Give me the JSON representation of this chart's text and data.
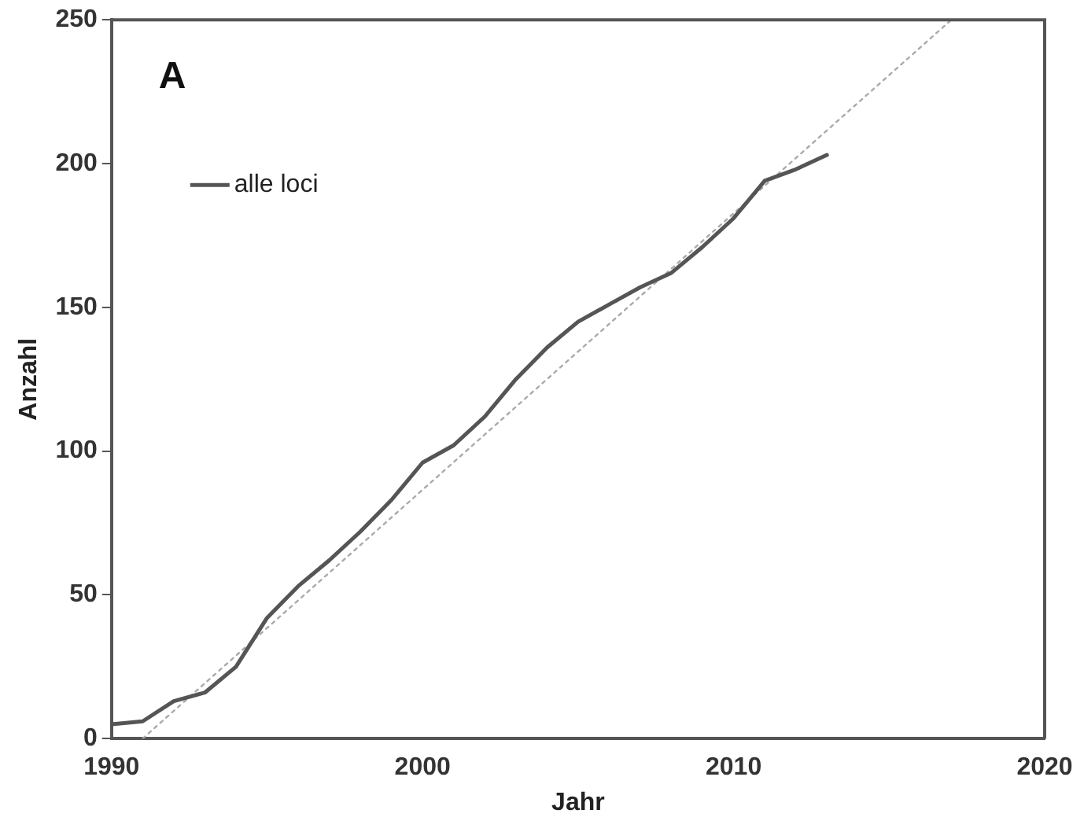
{
  "chart_data": {
    "type": "line",
    "xlabel": "Jahr",
    "ylabel": "Anzahl",
    "annotations": [
      "A"
    ],
    "xlim": [
      1990,
      2020
    ],
    "xticks": [
      1990,
      2000,
      2010,
      2020
    ],
    "ylim": [
      0,
      250
    ],
    "yticks": [
      0,
      50,
      100,
      150,
      200,
      250
    ],
    "grid": false,
    "legend": "top left",
    "marker": "none",
    "series": [
      {
        "name": "alle loci",
        "color": "#555555",
        "line_style": "solid",
        "x": [
          1990,
          1991,
          1992,
          1993,
          1994,
          1995,
          1996,
          1997,
          1998,
          1999,
          2000,
          2001,
          2002,
          2003,
          2004,
          2005,
          2006,
          2007,
          2008,
          2009,
          2010,
          2011,
          2012,
          2013
        ],
        "values": [
          5,
          6,
          13,
          16,
          25,
          42,
          53,
          62,
          72,
          83,
          96,
          102,
          112,
          125,
          136,
          145,
          151,
          157,
          162,
          171,
          181,
          194,
          198,
          203
        ]
      },
      {
        "type": "line",
        "color": "#aaaaaa",
        "line_style": "dotted",
        "x": [
          1991,
          2017
        ],
        "values": [
          0,
          250
        ]
      }
    ]
  }
}
